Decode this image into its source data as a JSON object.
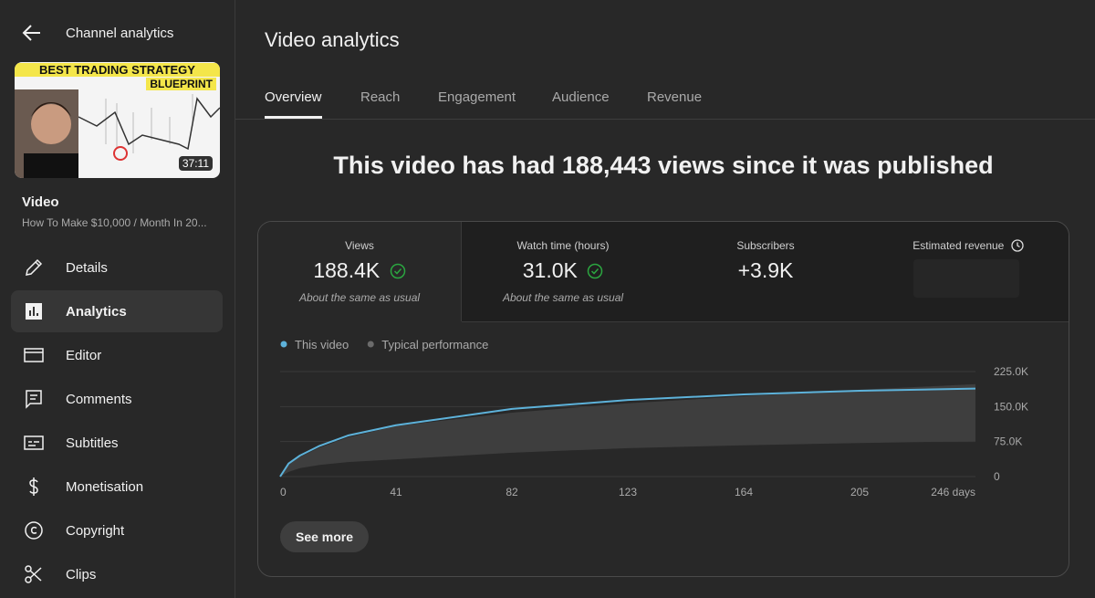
{
  "sidebar": {
    "back_title": "Channel analytics",
    "thumbnail": {
      "banner_line_1": "BEST TRADING STRATEGY",
      "banner_line_2": "BLUEPRINT",
      "duration": "37:11"
    },
    "video_label": "Video",
    "video_title": "How To Make $10,000 / Month In 20...",
    "nav": [
      "Details",
      "Analytics",
      "Editor",
      "Comments",
      "Subtitles",
      "Monetisation",
      "Copyright",
      "Clips"
    ],
    "active_nav": 1
  },
  "main": {
    "title": "Video analytics",
    "tabs": [
      "Overview",
      "Reach",
      "Engagement",
      "Audience",
      "Revenue"
    ],
    "active_tab": 0,
    "headline": "This video has had 188,443 views since it was published",
    "metrics": [
      {
        "label": "Views",
        "value": "188.4K",
        "note": "About the same as usual"
      },
      {
        "label": "Watch time (hours)",
        "value": "31.0K",
        "note": "About the same as usual"
      },
      {
        "label": "Subscribers",
        "value": "+3.9K"
      },
      {
        "label": "Estimated revenue"
      }
    ],
    "button": "See more"
  },
  "chart_data": {
    "type": "line",
    "x": [
      0,
      3,
      7,
      14,
      24,
      41,
      82,
      123,
      164,
      205,
      246
    ],
    "series": [
      {
        "name": "This video",
        "color": "#5db2da",
        "values": [
          0,
          28000,
          45000,
          66000,
          88000,
          110000,
          145000,
          164000,
          176000,
          184000,
          188443
        ]
      },
      {
        "name": "Typical performance",
        "color": "#6b6b6b",
        "band_color": "#3e3e3e",
        "values_high": [
          0,
          26000,
          42000,
          62000,
          84000,
          108000,
          137000,
          157000,
          172000,
          186000,
          198000
        ],
        "values_low": [
          0,
          10000,
          18000,
          25000,
          31000,
          37000,
          51000,
          61000,
          67000,
          72000,
          76000
        ]
      }
    ],
    "xlim": [
      0,
      246
    ],
    "xticks": [
      0,
      41,
      82,
      123,
      164,
      205,
      {
        "value": 246,
        "label": "246 days"
      }
    ],
    "ylim": [
      0,
      225000
    ],
    "yticks": [
      0,
      {
        "value": 75000,
        "label": "75.0K"
      },
      {
        "value": 150000,
        "label": "150.0K"
      },
      {
        "value": 225000,
        "label": "225.0K"
      }
    ],
    "grid": true
  }
}
